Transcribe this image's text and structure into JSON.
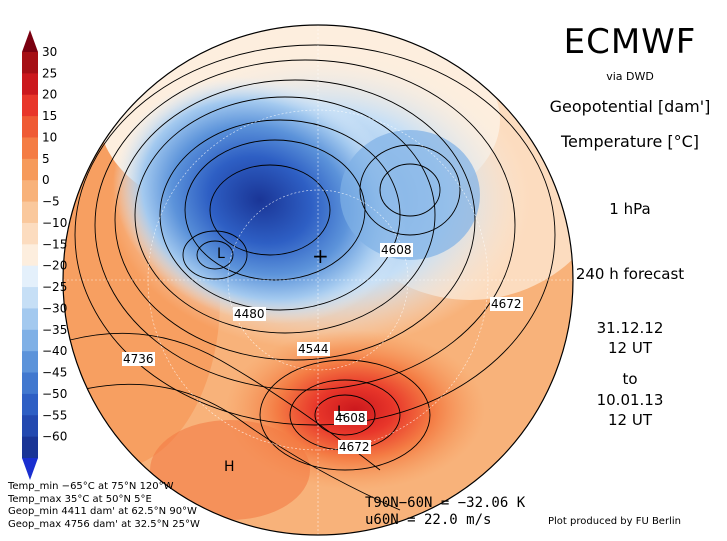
{
  "header": {
    "model": "ECMWF",
    "source": "via DWD",
    "field1": "Geopotential [dam']",
    "field2": "Temperature [°C]",
    "level": "1 hPa",
    "forecast": "240 h forecast",
    "init_date": "31.12.12",
    "init_time": "12 UT",
    "to": "to",
    "valid_date": "10.01.13",
    "valid_time": "12 UT"
  },
  "colorbar": {
    "labels": [
      "30",
      "25",
      "20",
      "15",
      "10",
      "5",
      "0",
      "−5",
      "−10",
      "−15",
      "−20",
      "−25",
      "−30",
      "−35",
      "−40",
      "−45",
      "−50",
      "−55",
      "−60"
    ],
    "colors": [
      "#a50f15",
      "#cb181d",
      "#e8362a",
      "#ef5a34",
      "#f47c44",
      "#f69a5b",
      "#f8b27a",
      "#fac89c",
      "#fcdcbf",
      "#fdeede",
      "#e4f0fb",
      "#c6dff6",
      "#a3c9ef",
      "#7fb0e6",
      "#5c93da",
      "#4178cf",
      "#2e5fc4",
      "#2349b0",
      "#1a3596"
    ]
  },
  "map": {
    "contour_labels": [
      "4608",
      "4480",
      "4544",
      "4672",
      "4736",
      "4608",
      "4672"
    ],
    "highs_lows": [
      "L",
      "L",
      "H"
    ]
  },
  "stats": {
    "tmin": "Temp_min −65°C at 75°N 120°W",
    "tmax": "Temp_max 35°C at 50°N 5°E",
    "gmin": "Geop_min 4411 dam' at 62.5°N 90°W",
    "gmax": "Geop_max 4756 dam' at 32.5°N 25°W"
  },
  "indices": {
    "t_line": "T90N−60N = −32.06 K",
    "u_line": "u60N = 22.0 m/s"
  },
  "credit": "Plot produced by FU Berlin"
}
